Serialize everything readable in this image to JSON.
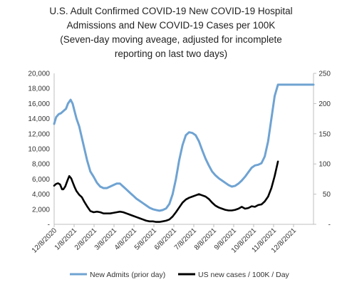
{
  "chart_data": {
    "type": "line",
    "title_lines": [
      "U.S. Adult Confirmed COVID-19 New COVID-19 Hospital",
      "Admissions and New COVID-19 Cases per 100K",
      "(Seven-day moving aveage, adjusted for incomplete",
      "reporting on last two days)"
    ],
    "x_tick_labels": [
      "12/8/2020",
      "1/8/2021",
      "2/8/2021",
      "3/8/2021",
      "4/8/2021",
      "5/8/2021",
      "6/8/2021",
      "7/8/2021",
      "8/8/2021",
      "9/8/2021",
      "10/8/2021",
      "11/8/2021",
      "12/8/2021"
    ],
    "x_range_days": [
      0,
      394
    ],
    "y_left": {
      "min": 0,
      "max": 20000,
      "ticks": [
        "-",
        "2,000",
        "4,000",
        "6,000",
        "8,000",
        "10,000",
        "12,000",
        "14,000",
        "16,000",
        "18,000",
        "20,000"
      ]
    },
    "y_right": {
      "min": 0,
      "max": 250,
      "ticks": [
        "-",
        "50",
        "100",
        "150",
        "200",
        "250"
      ]
    },
    "grid": false,
    "legend_position": "bottom",
    "series": [
      {
        "name": "New Admits (prior day)",
        "axis": "left",
        "color": "#6fa3d2",
        "x_days": [
          0,
          3,
          7,
          10,
          14,
          18,
          21,
          25,
          28,
          31,
          34,
          38,
          42,
          46,
          50,
          55,
          60,
          65,
          70,
          75,
          80,
          85,
          90,
          95,
          100,
          105,
          110,
          115,
          120,
          125,
          130,
          135,
          140,
          145,
          150,
          155,
          160,
          165,
          170,
          175,
          180,
          185,
          190,
          195,
          200,
          205,
          210,
          215,
          220,
          225,
          230,
          235,
          240,
          245,
          250,
          255,
          260,
          265,
          270,
          275,
          280,
          285,
          290,
          295,
          300,
          305,
          310,
          315,
          320,
          325,
          330,
          335,
          340,
          345,
          350,
          355,
          360,
          365,
          370,
          375,
          380,
          385,
          390,
          394
        ],
        "values": [
          13300,
          14200,
          14600,
          14700,
          15000,
          15300,
          16000,
          16500,
          16000,
          15000,
          14000,
          13000,
          11500,
          10000,
          8500,
          7000,
          6300,
          5500,
          5000,
          4800,
          4800,
          5000,
          5200,
          5400,
          5400,
          5000,
          4600,
          4200,
          3800,
          3400,
          3100,
          2800,
          2500,
          2200,
          2000,
          1900,
          1800,
          1900,
          2100,
          2700,
          4000,
          6000,
          8500,
          10500,
          11800,
          12200,
          12100,
          11800,
          11000,
          9800,
          8700,
          7800,
          7000,
          6500,
          6100,
          5800,
          5500,
          5200,
          5000,
          5100,
          5400,
          5800,
          6300,
          6900,
          7500,
          7800,
          7900,
          8100,
          9000,
          11000,
          14000,
          17000,
          18500,
          18500,
          18500,
          18500,
          18500,
          18500,
          18500,
          18500,
          18500,
          18500,
          18500,
          18500
        ]
      },
      {
        "name": "US new cases / 100K / Day",
        "axis": "right",
        "color": "#000000",
        "x_days": [
          0,
          3,
          6,
          9,
          12,
          14,
          17,
          20,
          23,
          26,
          28,
          31,
          34,
          38,
          42,
          46,
          50,
          55,
          60,
          65,
          70,
          75,
          80,
          85,
          90,
          95,
          100,
          105,
          110,
          115,
          120,
          125,
          130,
          135,
          140,
          145,
          150,
          155,
          160,
          165,
          170,
          175,
          180,
          185,
          190,
          195,
          200,
          205,
          210,
          215,
          220,
          225,
          230,
          235,
          240,
          245,
          250,
          255,
          260,
          265,
          270,
          275,
          280,
          285,
          290,
          295,
          300,
          305,
          310,
          315,
          320,
          325,
          330,
          335,
          340
        ],
        "values": [
          64,
          67,
          68,
          66,
          58,
          58,
          63,
          72,
          80,
          76,
          70,
          62,
          55,
          49,
          45,
          37,
          30,
          22,
          20,
          21,
          20,
          18,
          18,
          18,
          19,
          20,
          21,
          20,
          18,
          16,
          14,
          12,
          10,
          8,
          6,
          5,
          5,
          4,
          4,
          5,
          6,
          8,
          13,
          20,
          28,
          36,
          41,
          44,
          46,
          48,
          50,
          48,
          46,
          42,
          36,
          31,
          28,
          26,
          24,
          23,
          23,
          24,
          26,
          29,
          26,
          27,
          30,
          29,
          32,
          33,
          38,
          46,
          60,
          80,
          104
        ]
      }
    ]
  }
}
